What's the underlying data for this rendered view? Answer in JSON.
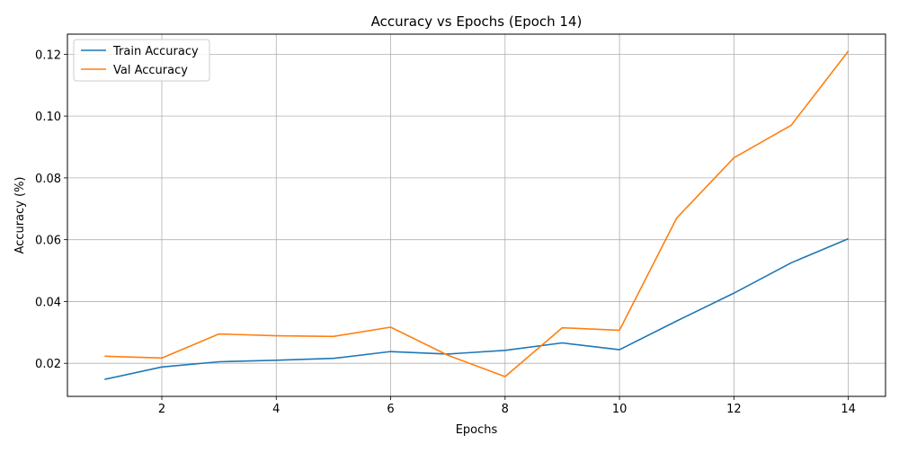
{
  "chart_data": {
    "type": "line",
    "title": "Accuracy vs Epochs (Epoch 14)",
    "xlabel": "Epochs",
    "ylabel": "Accuracy (%)",
    "x": [
      1,
      2,
      3,
      4,
      5,
      6,
      7,
      8,
      9,
      10,
      11,
      12,
      13,
      14
    ],
    "xlim": [
      0.35,
      14.65
    ],
    "ylim": [
      0.0093,
      0.1265
    ],
    "xticks": [
      2,
      4,
      6,
      8,
      10,
      12,
      14
    ],
    "xtick_labels": [
      "2",
      "4",
      "6",
      "8",
      "10",
      "12",
      "14"
    ],
    "yticks": [
      0.02,
      0.04,
      0.06,
      0.08,
      0.1,
      0.12
    ],
    "ytick_labels": [
      "0.02",
      "0.04",
      "0.06",
      "0.08",
      "0.10",
      "0.12"
    ],
    "grid": true,
    "legend_position": "upper-left",
    "series": [
      {
        "name": "Train Accuracy",
        "color": "#1f77b4",
        "values": [
          0.0148,
          0.0188,
          0.0205,
          0.021,
          0.0216,
          0.0238,
          0.023,
          0.0242,
          0.0266,
          0.0244,
          0.0337,
          0.0427,
          0.0525,
          0.0603
        ]
      },
      {
        "name": "Val Accuracy",
        "color": "#ff7f0e",
        "values": [
          0.0223,
          0.0217,
          0.0295,
          0.0289,
          0.0287,
          0.0317,
          0.0226,
          0.0157,
          0.0315,
          0.0307,
          0.067,
          0.0865,
          0.097,
          0.121
        ]
      }
    ]
  }
}
